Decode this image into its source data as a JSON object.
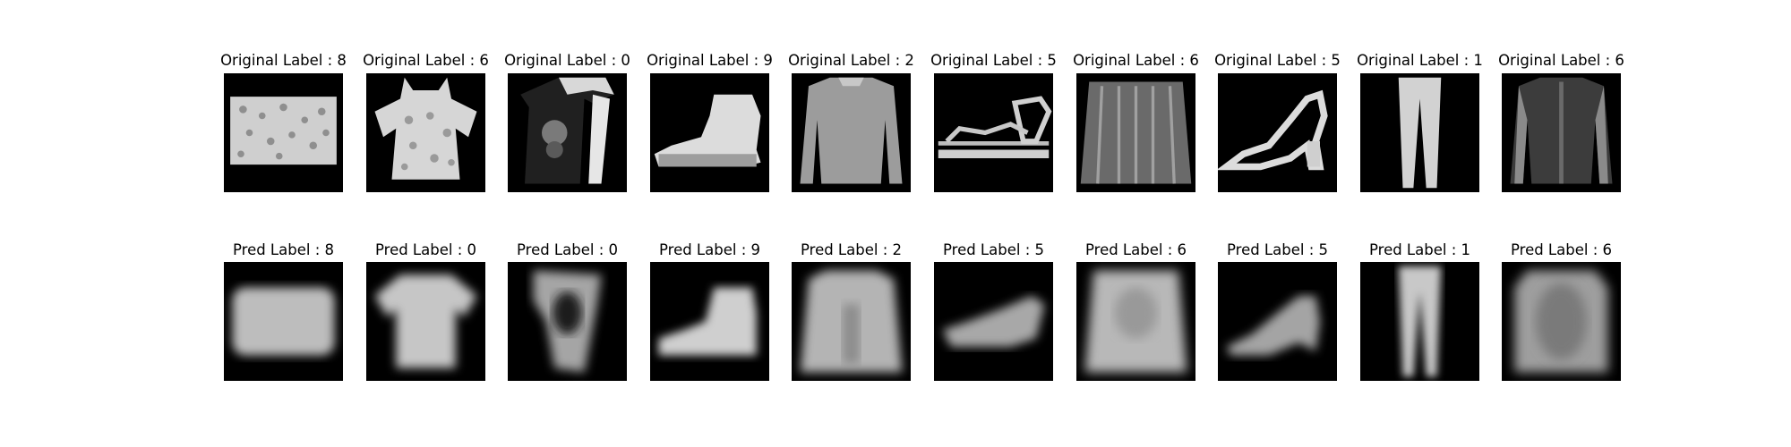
{
  "rows": [
    {
      "name": "original",
      "titles": [
        "Original Label : 8",
        "Original Label : 6",
        "Original Label : 0",
        "Original Label : 9",
        "Original Label : 2",
        "Original Label : 5",
        "Original Label : 6",
        "Original Label : 5",
        "Original Label : 1",
        "Original Label : 6"
      ],
      "items": [
        "bag-icon",
        "shirt-icon",
        "tshirt-icon",
        "ankle-boot-icon",
        "pullover-icon",
        "sandal-icon",
        "shirt-icon",
        "sandal-icon",
        "trouser-icon",
        "shirt-icon"
      ]
    },
    {
      "name": "pred",
      "titles": [
        "Pred Label : 8",
        "Pred Label : 0",
        "Pred Label : 0",
        "Pred Label : 9",
        "Pred Label : 2",
        "Pred Label : 5",
        "Pred Label : 6",
        "Pred Label : 5",
        "Pred Label : 1",
        "Pred Label : 6"
      ],
      "items": [
        "bag-icon",
        "tshirt-icon",
        "tshirt-icon",
        "ankle-boot-icon",
        "pullover-icon",
        "sandal-icon",
        "shirt-icon",
        "sandal-icon",
        "trouser-icon",
        "shirt-icon"
      ]
    }
  ],
  "colors": {
    "background": "#ffffff",
    "image_background": "#000000",
    "garment_light": "#d8d8d8",
    "garment_mid": "#a8a8a8",
    "garment_dark": "#4a4a4a"
  }
}
